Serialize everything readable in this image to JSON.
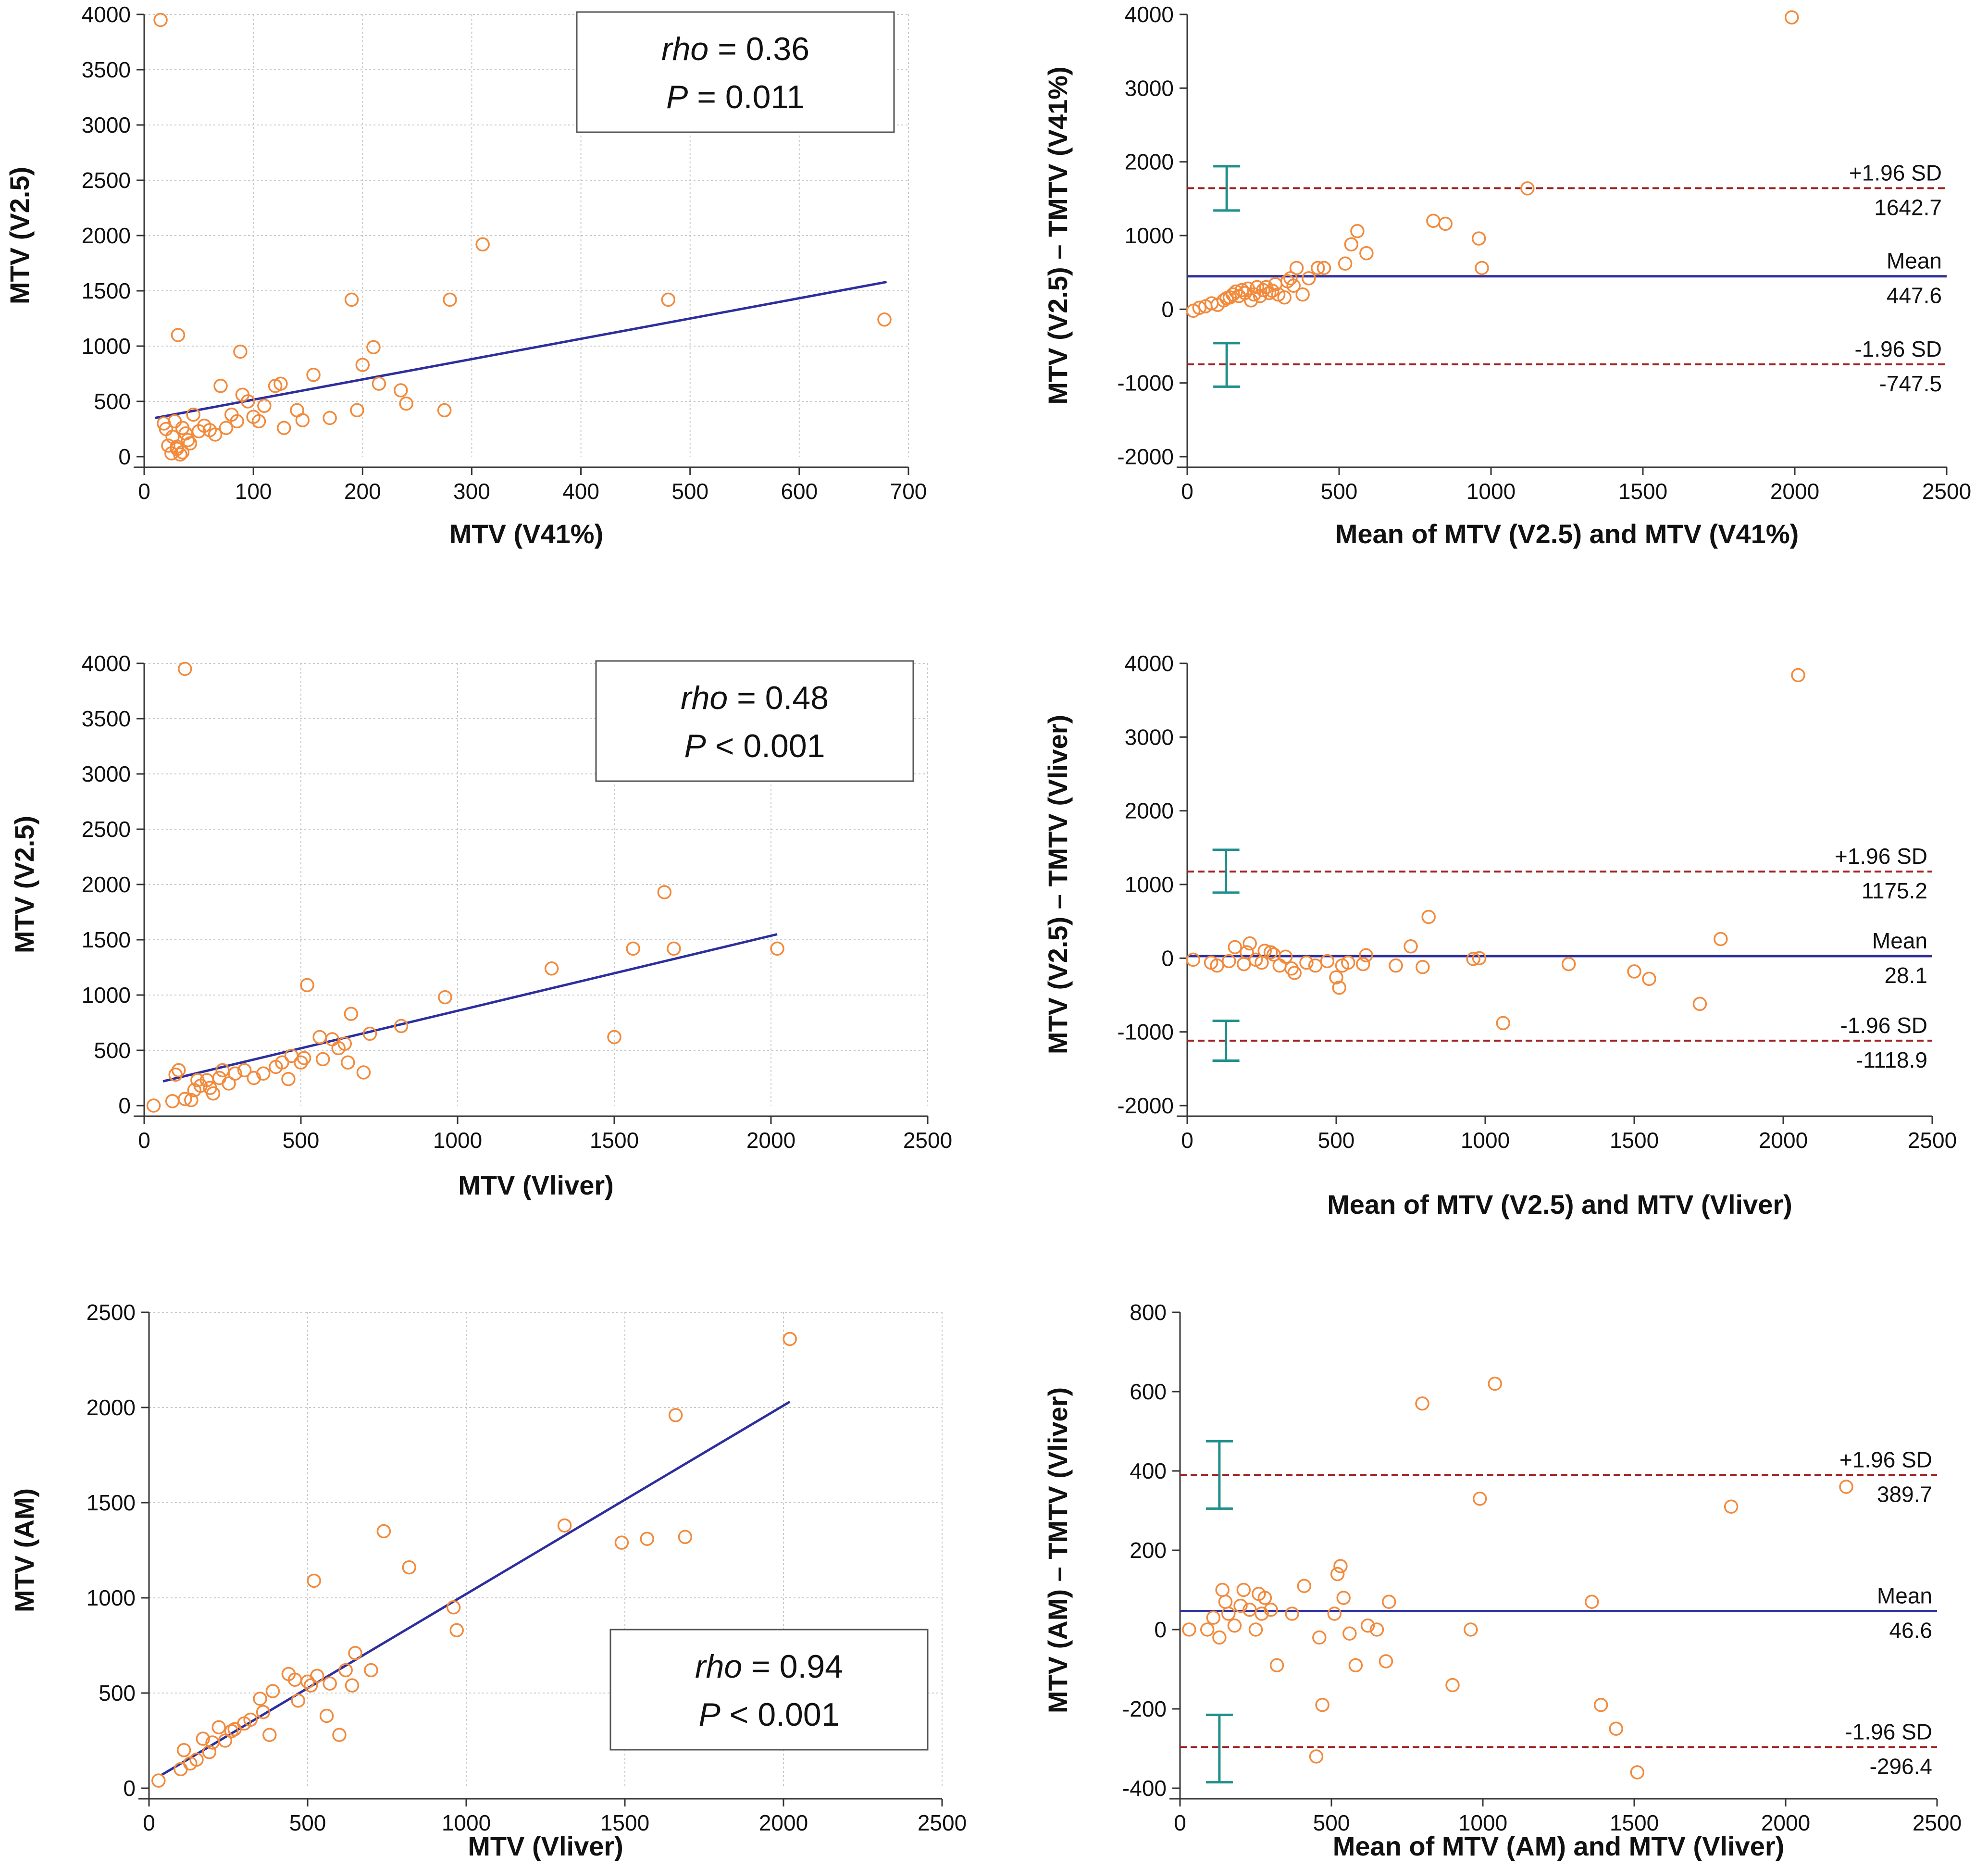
{
  "figure": {
    "title": "MTV correlation and Bland-Altman analysis"
  },
  "chart_data": [
    {
      "type": "scatter",
      "panel": "top-left",
      "title": "",
      "xlabel": "MTV (V41%)",
      "ylabel": "MTV (V2.5)",
      "xlim": [
        0,
        700
      ],
      "ylim": [
        0,
        4000
      ],
      "xticks": [
        0,
        100,
        200,
        300,
        400,
        500,
        600,
        700
      ],
      "yticks": [
        0,
        500,
        1000,
        1500,
        2000,
        2500,
        3000,
        3500,
        4000
      ],
      "grid": true,
      "annotation": {
        "rho_label": "rho",
        "rho_value": " = 0.36",
        "p_label": "P",
        "p_value": " = 0.011",
        "placement": "top-right"
      },
      "fit_line": {
        "x": [
          10,
          680
        ],
        "y": [
          350,
          1580
        ]
      },
      "points": {
        "x": [
          15,
          18,
          20,
          22,
          25,
          26,
          28,
          30,
          31,
          33,
          35,
          38,
          40,
          42,
          45,
          50,
          55,
          60,
          65,
          70,
          75,
          80,
          85,
          88,
          90,
          95,
          100,
          105,
          110,
          120,
          125,
          128,
          140,
          145,
          155,
          170,
          190,
          195,
          200,
          210,
          215,
          235,
          240,
          275,
          280,
          310,
          480,
          678,
          30,
          35
        ],
        "y": [
          3950,
          300,
          250,
          100,
          30,
          180,
          320,
          70,
          1100,
          20,
          260,
          210,
          150,
          120,
          380,
          230,
          280,
          240,
          200,
          640,
          260,
          380,
          320,
          950,
          560,
          500,
          360,
          320,
          460,
          640,
          660,
          260,
          420,
          330,
          740,
          350,
          1420,
          420,
          830,
          990,
          660,
          600,
          480,
          420,
          1420,
          1920,
          1420,
          1240,
          90,
          40
        ]
      },
      "colors": {
        "points": "#f28a3c",
        "line": "#2e2f9e"
      }
    },
    {
      "type": "scatter",
      "panel": "top-right",
      "title": "",
      "xlabel": "Mean of MTV (V2.5) and MTV (V41%)",
      "ylabel": "MTV (V2.5) – TMTV (V41%)",
      "xlim": [
        0,
        2500
      ],
      "ylim": [
        -2000,
        4000
      ],
      "xticks": [
        0,
        500,
        1000,
        1500,
        2000,
        2500
      ],
      "yticks": [
        -2000,
        -1000,
        0,
        1000,
        2000,
        3000,
        4000
      ],
      "grid": false,
      "lines": {
        "upper_label": "+1.96 SD",
        "upper": 1642.7,
        "mean_label": "Mean",
        "mean": 447.6,
        "lower_label": "-1.96 SD",
        "lower": -747.5
      },
      "ci_bars": [
        {
          "x": 130,
          "low": 1340,
          "high": 1940
        },
        {
          "x": 130,
          "low": -1050,
          "high": -460
        }
      ],
      "points": {
        "x": [
          20,
          40,
          60,
          80,
          100,
          120,
          130,
          140,
          150,
          160,
          170,
          180,
          190,
          200,
          210,
          220,
          230,
          240,
          250,
          260,
          270,
          280,
          290,
          300,
          320,
          330,
          340,
          350,
          360,
          380,
          400,
          430,
          450,
          520,
          540,
          560,
          590,
          810,
          850,
          960,
          970,
          1120,
          1990
        ],
        "y": [
          -20,
          20,
          40,
          80,
          60,
          120,
          150,
          160,
          200,
          240,
          180,
          260,
          220,
          280,
          120,
          200,
          300,
          180,
          260,
          300,
          220,
          250,
          340,
          200,
          160,
          380,
          420,
          320,
          560,
          200,
          420,
          560,
          560,
          620,
          880,
          1060,
          760,
          1200,
          1160,
          960,
          560,
          1640,
          3960
        ]
      },
      "colors": {
        "points": "#f28a3c",
        "mean": "#2e2f9e",
        "limits": "#a02020",
        "ci": "#1f8f8a"
      }
    },
    {
      "type": "scatter",
      "panel": "middle-left",
      "title": "",
      "xlabel": "MTV (Vliver)",
      "ylabel": "MTV (V2.5)",
      "xlim": [
        0,
        2500
      ],
      "ylim": [
        0,
        4000
      ],
      "xticks": [
        0,
        500,
        1000,
        1500,
        2000,
        2500
      ],
      "yticks": [
        0,
        500,
        1000,
        1500,
        2000,
        2500,
        3000,
        3500,
        4000
      ],
      "grid": true,
      "annotation": {
        "rho_label": "rho",
        "rho_value": " = 0.48",
        "p_label": "P",
        "p_value": " < 0.001",
        "placement": "top-right"
      },
      "fit_line": {
        "x": [
          60,
          2020
        ],
        "y": [
          220,
          1550
        ]
      },
      "points": {
        "x": [
          30,
          90,
          100,
          110,
          130,
          150,
          160,
          170,
          180,
          200,
          210,
          220,
          240,
          250,
          270,
          290,
          320,
          350,
          380,
          420,
          440,
          460,
          470,
          500,
          510,
          520,
          560,
          570,
          600,
          620,
          640,
          650,
          660,
          700,
          720,
          820,
          960,
          1300,
          1500,
          1560,
          1660,
          1690,
          2020,
          130
        ],
        "y": [
          0,
          40,
          280,
          320,
          60,
          50,
          140,
          230,
          180,
          230,
          160,
          110,
          250,
          320,
          200,
          290,
          320,
          250,
          290,
          350,
          390,
          240,
          450,
          390,
          430,
          1090,
          620,
          420,
          600,
          520,
          560,
          390,
          830,
          300,
          650,
          720,
          980,
          1240,
          620,
          1420,
          1930,
          1420,
          1420,
          3950
        ]
      },
      "colors": {
        "points": "#f28a3c",
        "line": "#2e2f9e"
      }
    },
    {
      "type": "scatter",
      "panel": "middle-right",
      "title": "",
      "xlabel": "Mean of MTV (V2.5) and MTV (Vliver)",
      "ylabel": "MTV (V2.5) – TMTV (Vliver)",
      "xlim": [
        0,
        2500
      ],
      "ylim": [
        -2000,
        4000
      ],
      "xticks": [
        0,
        500,
        1000,
        1500,
        2000,
        2500
      ],
      "yticks": [
        -2000,
        -1000,
        0,
        1000,
        2000,
        3000,
        4000
      ],
      "grid": false,
      "lines": {
        "upper_label": "+1.96 SD",
        "upper": 1175.2,
        "mean_label": "Mean",
        "mean": 28.1,
        "lower_label": "-1.96 SD",
        "lower": -1118.9
      },
      "ci_bars": [
        {
          "x": 130,
          "low": 890,
          "high": 1470
        },
        {
          "x": 130,
          "low": -1390,
          "high": -850
        }
      ],
      "points": {
        "x": [
          20,
          80,
          100,
          140,
          160,
          190,
          200,
          210,
          230,
          250,
          260,
          280,
          290,
          310,
          330,
          350,
          360,
          400,
          430,
          470,
          500,
          510,
          520,
          540,
          590,
          600,
          700,
          750,
          790,
          810,
          960,
          980,
          1060,
          1280,
          1500,
          1550,
          1720,
          1790,
          2050
        ],
        "y": [
          -20,
          -60,
          -100,
          -40,
          150,
          -80,
          80,
          200,
          -20,
          -60,
          100,
          80,
          50,
          -100,
          20,
          -140,
          -200,
          -60,
          -100,
          -40,
          -260,
          -400,
          -100,
          -60,
          -80,
          40,
          -100,
          160,
          -120,
          560,
          -10,
          0,
          -880,
          -80,
          -180,
          -280,
          -620,
          260,
          3840
        ]
      },
      "colors": {
        "points": "#f28a3c",
        "mean": "#2e2f9e",
        "limits": "#a02020",
        "ci": "#1f8f8a"
      }
    },
    {
      "type": "scatter",
      "panel": "bottom-left",
      "title": "",
      "xlabel": "MTV (Vliver)",
      "ylabel": "MTV (AM)",
      "xlim": [
        0,
        2500
      ],
      "ylim": [
        0,
        2500
      ],
      "xticks": [
        0,
        500,
        1000,
        1500,
        2000,
        2500
      ],
      "yticks": [
        0,
        500,
        1000,
        1500,
        2000,
        2500
      ],
      "grid": true,
      "annotation": {
        "rho_label": "rho",
        "rho_value": " = 0.94",
        "p_label": "P",
        "p_value": " < 0.001",
        "placement": "bottom-right"
      },
      "fit_line": {
        "x": [
          40,
          2020
        ],
        "y": [
          70,
          2030
        ]
      },
      "points": {
        "x": [
          30,
          100,
          110,
          130,
          150,
          170,
          190,
          200,
          220,
          240,
          260,
          270,
          300,
          320,
          350,
          360,
          380,
          390,
          440,
          460,
          470,
          500,
          510,
          530,
          560,
          570,
          600,
          620,
          640,
          650,
          700,
          740,
          820,
          960,
          970,
          1310,
          1490,
          1570,
          1660,
          1690,
          2020,
          520
        ],
        "y": [
          40,
          100,
          200,
          130,
          150,
          260,
          190,
          240,
          320,
          250,
          300,
          310,
          340,
          360,
          470,
          400,
          280,
          510,
          600,
          570,
          460,
          560,
          540,
          590,
          380,
          550,
          280,
          620,
          540,
          710,
          620,
          1350,
          1160,
          950,
          830,
          1380,
          1290,
          1310,
          1960,
          1320,
          2360,
          1090
        ]
      },
      "colors": {
        "points": "#f28a3c",
        "line": "#2e2f9e"
      }
    },
    {
      "type": "scatter",
      "panel": "bottom-right",
      "title": "",
      "xlabel": "Mean of MTV (AM) and MTV (Vliver)",
      "ylabel": "MTV (AM) – TMTV (Vliver)",
      "xlim": [
        0,
        2500
      ],
      "ylim": [
        -400,
        800
      ],
      "xticks": [
        0,
        500,
        1000,
        1500,
        2000,
        2500
      ],
      "yticks": [
        -400,
        -200,
        0,
        200,
        400,
        600,
        800
      ],
      "grid": false,
      "lines": {
        "upper_label": "+1.96 SD",
        "upper": 389.7,
        "mean_label": "Mean",
        "mean": 46.6,
        "lower_label": "-1.96 SD",
        "lower": -296.4
      },
      "ci_bars": [
        {
          "x": 130,
          "low": 305,
          "high": 475
        },
        {
          "x": 130,
          "low": -385,
          "high": -215
        }
      ],
      "points": {
        "x": [
          30,
          90,
          110,
          130,
          140,
          150,
          160,
          180,
          200,
          210,
          230,
          250,
          260,
          270,
          280,
          300,
          320,
          370,
          410,
          450,
          460,
          470,
          510,
          520,
          530,
          540,
          560,
          580,
          620,
          650,
          680,
          690,
          800,
          900,
          960,
          990,
          1040,
          1360,
          1390,
          1440,
          1510,
          1820,
          2200
        ],
        "y": [
          0,
          0,
          30,
          -20,
          100,
          70,
          40,
          10,
          60,
          100,
          50,
          0,
          90,
          40,
          80,
          50,
          -90,
          40,
          110,
          -320,
          -20,
          -190,
          40,
          140,
          160,
          80,
          -10,
          -90,
          10,
          0,
          -80,
          70,
          570,
          -140,
          0,
          330,
          620,
          70,
          -190,
          -250,
          -360,
          310,
          360
        ]
      },
      "colors": {
        "points": "#f28a3c",
        "mean": "#2e2f9e",
        "limits": "#a02020",
        "ci": "#1f8f8a"
      }
    }
  ]
}
